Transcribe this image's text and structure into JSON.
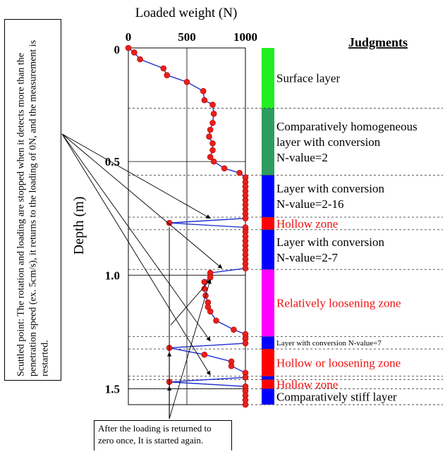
{
  "chart_data": {
    "type": "line",
    "title": "Loaded weight (N)",
    "xlabel": "Loaded weight (N)",
    "ylabel": "Depth (m)",
    "xlim": [
      0,
      1000
    ],
    "ylim": [
      0,
      1.57
    ],
    "x_ticks": [
      "0",
      "500",
      "1000"
    ],
    "y_ticks": [
      "0",
      "0.5",
      "1.0",
      "1.5"
    ],
    "x_tick_values": [
      0,
      500,
      1000
    ],
    "y_tick_values": [
      0,
      0.5,
      1.0,
      1.5
    ],
    "marker_color": "#e8201a",
    "line_color": "#2030d0",
    "series": [
      {
        "points": [
          [
            0,
            0.0
          ],
          [
            50,
            0.02
          ],
          [
            100,
            0.05
          ],
          [
            300,
            0.09
          ],
          [
            330,
            0.12
          ],
          [
            500,
            0.15
          ],
          [
            640,
            0.19
          ],
          [
            650,
            0.23
          ],
          [
            720,
            0.25
          ],
          [
            730,
            0.29
          ],
          [
            720,
            0.33
          ],
          [
            700,
            0.36
          ],
          [
            690,
            0.39
          ],
          [
            720,
            0.42
          ],
          [
            720,
            0.45
          ],
          [
            700,
            0.48
          ],
          [
            730,
            0.5
          ],
          [
            820,
            0.53
          ],
          [
            950,
            0.55
          ],
          [
            1000,
            0.57
          ],
          [
            1000,
            0.59
          ],
          [
            1000,
            0.61
          ],
          [
            1000,
            0.63
          ],
          [
            1000,
            0.65
          ],
          [
            1000,
            0.67
          ],
          [
            1000,
            0.69
          ],
          [
            1000,
            0.71
          ],
          [
            1000,
            0.73
          ],
          [
            1000,
            0.75
          ],
          [
            350,
            0.77
          ],
          [
            1000,
            0.79
          ],
          [
            1000,
            0.81
          ],
          [
            1000,
            0.83
          ],
          [
            1000,
            0.85
          ],
          [
            1000,
            0.87
          ],
          [
            1000,
            0.89
          ],
          [
            1000,
            0.91
          ],
          [
            1000,
            0.93
          ],
          [
            1000,
            0.95
          ],
          [
            1000,
            0.97
          ],
          [
            700,
            0.99
          ],
          [
            700,
            1.01
          ],
          [
            650,
            1.03
          ],
          [
            650,
            1.06
          ],
          [
            660,
            1.09
          ],
          [
            680,
            1.12
          ],
          [
            680,
            1.14
          ],
          [
            700,
            1.16
          ],
          [
            750,
            1.2
          ],
          [
            900,
            1.24
          ],
          [
            1000,
            1.26
          ],
          [
            1000,
            1.28
          ],
          [
            1000,
            1.3
          ],
          [
            350,
            1.32
          ],
          [
            650,
            1.35
          ],
          [
            880,
            1.38
          ],
          [
            880,
            1.4
          ],
          [
            1000,
            1.43
          ],
          [
            1000,
            1.45
          ],
          [
            350,
            1.47
          ],
          [
            1000,
            1.49
          ],
          [
            1000,
            1.51
          ],
          [
            1000,
            1.53
          ],
          [
            1000,
            1.55
          ],
          [
            1000,
            1.57
          ]
        ]
      }
    ],
    "judgments_title": "Judgments",
    "layers": [
      {
        "label": "Surface layer",
        "from": 0.0,
        "to": 0.265,
        "color": "#22ee22",
        "text_color": "#000000",
        "size": "large"
      },
      {
        "label": "Comparatively homogeneous layer with conversion N-value=2",
        "from": 0.265,
        "to": 0.56,
        "color": "#2e9c5c",
        "text_color": "#000000",
        "size": "large"
      },
      {
        "label": "Layer with conversion N-value=2-16",
        "from": 0.56,
        "to": 0.745,
        "color": "#0000ff",
        "text_color": "#000000",
        "size": "large"
      },
      {
        "label": "Hollow zone",
        "from": 0.745,
        "to": 0.8,
        "color": "#ff0000",
        "text_color": "#ee1111",
        "size": "large"
      },
      {
        "label": "Layer with conversion N-value=2-7",
        "from": 0.8,
        "to": 0.975,
        "color": "#0000ff",
        "text_color": "#000000",
        "size": "large"
      },
      {
        "label": "Relatively loosening zone",
        "from": 0.975,
        "to": 1.27,
        "color": "#ff00ff",
        "text_color": "#ee1111",
        "size": "large"
      },
      {
        "label": "Layer with conversion N-value=7",
        "from": 1.27,
        "to": 1.325,
        "color": "#0000ff",
        "text_color": "#000000",
        "size": "small"
      },
      {
        "label": "Hollow or loosening zone",
        "from": 1.325,
        "to": 1.445,
        "color": "#ff0000",
        "text_color": "#ee1111",
        "size": "large"
      },
      {
        "label": "",
        "from": 1.445,
        "to": 1.46,
        "color": "#0000ff",
        "text_color": "#000000",
        "size": "large"
      },
      {
        "label": "Hollow zone",
        "from": 1.46,
        "to": 1.5,
        "color": "#ff0000",
        "text_color": "#ee1111",
        "size": "large"
      },
      {
        "label": "Comparatively stiff layer",
        "from": 1.5,
        "to": 1.57,
        "color": "#0000ff",
        "text_color": "#000000",
        "size": "large"
      }
    ],
    "annotations": {
      "scuttled_point": "Scuttled point: The rotation and loading are stopped when it detects more than the penetration speed (ex. 5cm/s), it returns to the loading of 0N, and the measurement is restarted.",
      "restart": "After the loading is returned to zero once, It is started again."
    }
  }
}
